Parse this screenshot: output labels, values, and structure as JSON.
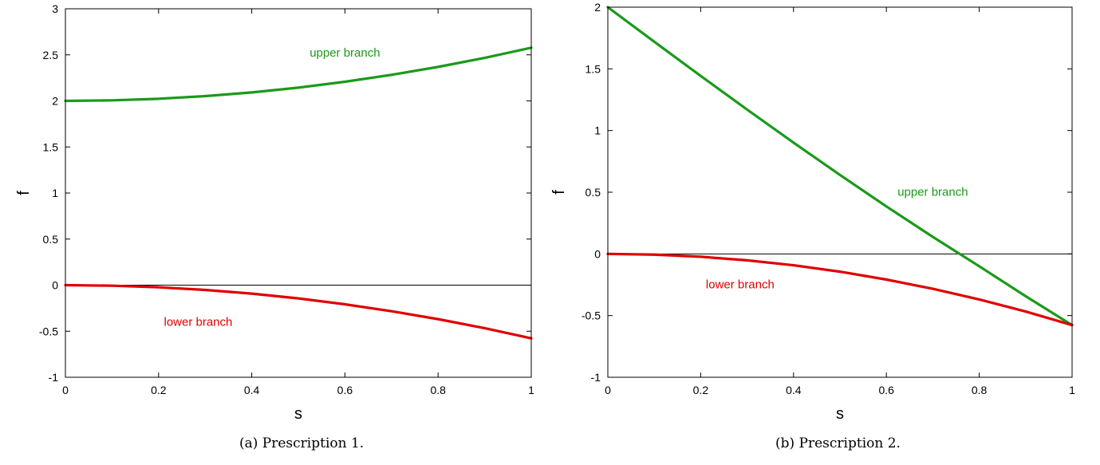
{
  "chart_data": [
    {
      "type": "line",
      "xlabel": "s",
      "ylabel": "f",
      "xlim": [
        0,
        1
      ],
      "ylim": [
        -1,
        3
      ],
      "xticks": [
        0,
        0.2,
        0.4,
        0.6,
        0.8,
        1
      ],
      "xtick_labels": [
        "0",
        "0.2",
        "0.4",
        "0.6",
        "0.8",
        "1"
      ],
      "yticks": [
        -1,
        -0.5,
        0,
        0.5,
        1,
        1.5,
        2,
        2.5,
        3
      ],
      "ytick_labels": [
        "-1",
        "-0.5",
        "0",
        "0.5",
        "1",
        "1.5",
        "2",
        "2.5",
        "3"
      ],
      "zero_line": true,
      "grid": false,
      "series": [
        {
          "name": "upper branch",
          "color": "#1a9a1a",
          "x": [
            0,
            0.1,
            0.2,
            0.3,
            0.4,
            0.5,
            0.6,
            0.7,
            0.8,
            0.9,
            1.0
          ],
          "y": [
            2.0,
            2.006,
            2.023,
            2.052,
            2.092,
            2.144,
            2.208,
            2.283,
            2.369,
            2.467,
            2.577
          ]
        },
        {
          "name": "lower branch",
          "color": "#e00000",
          "x": [
            0,
            0.1,
            0.2,
            0.3,
            0.4,
            0.5,
            0.6,
            0.7,
            0.8,
            0.9,
            1.0
          ],
          "y": [
            0.0,
            -0.006,
            -0.023,
            -0.052,
            -0.092,
            -0.144,
            -0.208,
            -0.283,
            -0.369,
            -0.467,
            -0.577
          ]
        }
      ],
      "annotations": [
        {
          "text": "upper branch",
          "x": 0.6,
          "y": 2.48,
          "color": "#1a9a1a"
        },
        {
          "text": "lower branch",
          "x": 0.285,
          "y": -0.44,
          "color": "#e00000"
        }
      ],
      "caption": "(a) Prescription 1."
    },
    {
      "type": "line",
      "xlabel": "s",
      "ylabel": "f",
      "xlim": [
        0,
        1
      ],
      "ylim": [
        -1,
        2
      ],
      "xticks": [
        0,
        0.2,
        0.4,
        0.6,
        0.8,
        1
      ],
      "xtick_labels": [
        "0",
        "0.2",
        "0.4",
        "0.6",
        "0.8",
        "1"
      ],
      "yticks": [
        -1,
        -0.5,
        0,
        0.5,
        1,
        1.5,
        2
      ],
      "ytick_labels": [
        "-1",
        "-0.5",
        "0",
        "0.5",
        "1",
        "1.5",
        "2"
      ],
      "zero_line": true,
      "grid": false,
      "series": [
        {
          "name": "upper branch",
          "color": "#1a9a1a",
          "x": [
            0,
            0.1,
            0.2,
            0.3,
            0.4,
            0.5,
            0.6,
            0.7,
            0.8,
            0.9,
            1.0
          ],
          "y": [
            2.0,
            1.72,
            1.443,
            1.17,
            0.902,
            0.64,
            0.385,
            0.138,
            -0.1,
            -0.343,
            -0.577
          ]
        },
        {
          "name": "lower branch",
          "color": "#e00000",
          "x": [
            0,
            0.1,
            0.2,
            0.3,
            0.4,
            0.5,
            0.6,
            0.7,
            0.8,
            0.9,
            1.0
          ],
          "y": [
            0.0,
            -0.006,
            -0.023,
            -0.052,
            -0.092,
            -0.144,
            -0.208,
            -0.283,
            -0.369,
            -0.467,
            -0.577
          ]
        }
      ],
      "annotations": [
        {
          "text": "upper branch",
          "x": 0.7,
          "y": 0.47,
          "color": "#1a9a1a"
        },
        {
          "text": "lower branch",
          "x": 0.285,
          "y": -0.28,
          "color": "#e00000"
        }
      ],
      "caption": "(b) Prescription 2."
    }
  ]
}
